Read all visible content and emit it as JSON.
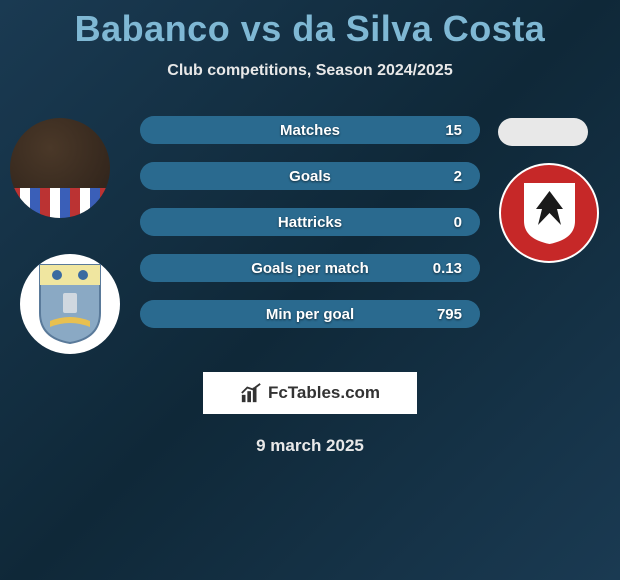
{
  "title": "Babanco vs da Silva Costa",
  "subtitle": "Club competitions, Season 2024/2025",
  "date": "9 march 2025",
  "logo_text": "FcTables.com",
  "colors": {
    "bar_bg": "#204a63",
    "bar_fill": "#2a6a8f"
  },
  "stats": [
    {
      "label": "Matches",
      "value": "15",
      "fill_pct": 100
    },
    {
      "label": "Goals",
      "value": "2",
      "fill_pct": 100
    },
    {
      "label": "Hattricks",
      "value": "0",
      "fill_pct": 100
    },
    {
      "label": "Goals per match",
      "value": "0.13",
      "fill_pct": 100
    },
    {
      "label": "Min per goal",
      "value": "795",
      "fill_pct": 100
    }
  ]
}
